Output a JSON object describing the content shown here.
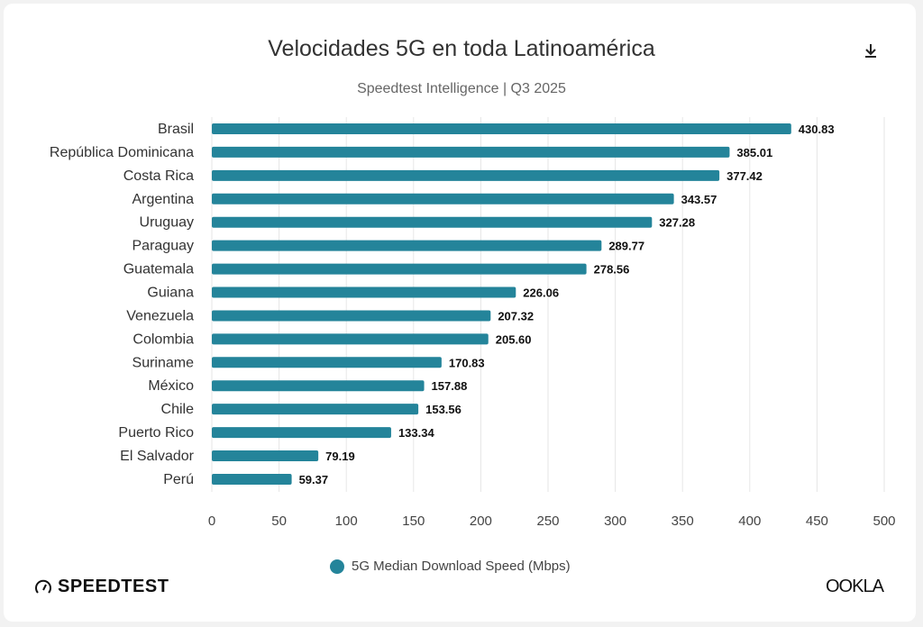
{
  "header": {
    "title": "Velocidades 5G en toda Latinoamérica",
    "subtitle": "Speedtest Intelligence | Q3 2025",
    "download_icon": "download-icon"
  },
  "chart_data": {
    "type": "bar",
    "orientation": "horizontal",
    "title": "Velocidades 5G en toda Latinoamérica",
    "subtitle": "Speedtest Intelligence | Q3 2025",
    "categories": [
      "Brasil",
      "República Dominicana",
      "Costa Rica",
      "Argentina",
      "Uruguay",
      "Paraguay",
      "Guatemala",
      "Guiana",
      "Venezuela",
      "Colombia",
      "Suriname",
      "México",
      "Chile",
      "Puerto Rico",
      "El Salvador",
      "Perú"
    ],
    "series": [
      {
        "name": "5G Median Download Speed (Mbps)",
        "values": [
          430.83,
          385.01,
          377.42,
          343.57,
          327.28,
          289.77,
          278.56,
          226.06,
          207.32,
          205.6,
          170.83,
          157.88,
          153.56,
          133.34,
          79.19,
          59.37
        ],
        "color": "#24849a"
      }
    ],
    "value_labels": [
      "430.83",
      "385.01",
      "377.42",
      "343.57",
      "327.28",
      "289.77",
      "278.56",
      "226.06",
      "207.32",
      "205.60",
      "170.83",
      "157.88",
      "153.56",
      "133.34",
      "79.19",
      "59.37"
    ],
    "xlim": [
      0,
      500
    ],
    "xticks": [
      "0",
      "50",
      "100",
      "150",
      "200",
      "250",
      "300",
      "350",
      "400",
      "450",
      "500"
    ],
    "grid": true,
    "legend_position": "bottom"
  },
  "legend": {
    "label": "5G Median Download Speed (Mbps)"
  },
  "branding": {
    "speedtest": "SPEEDTEST",
    "ookla": "OOKLA"
  }
}
